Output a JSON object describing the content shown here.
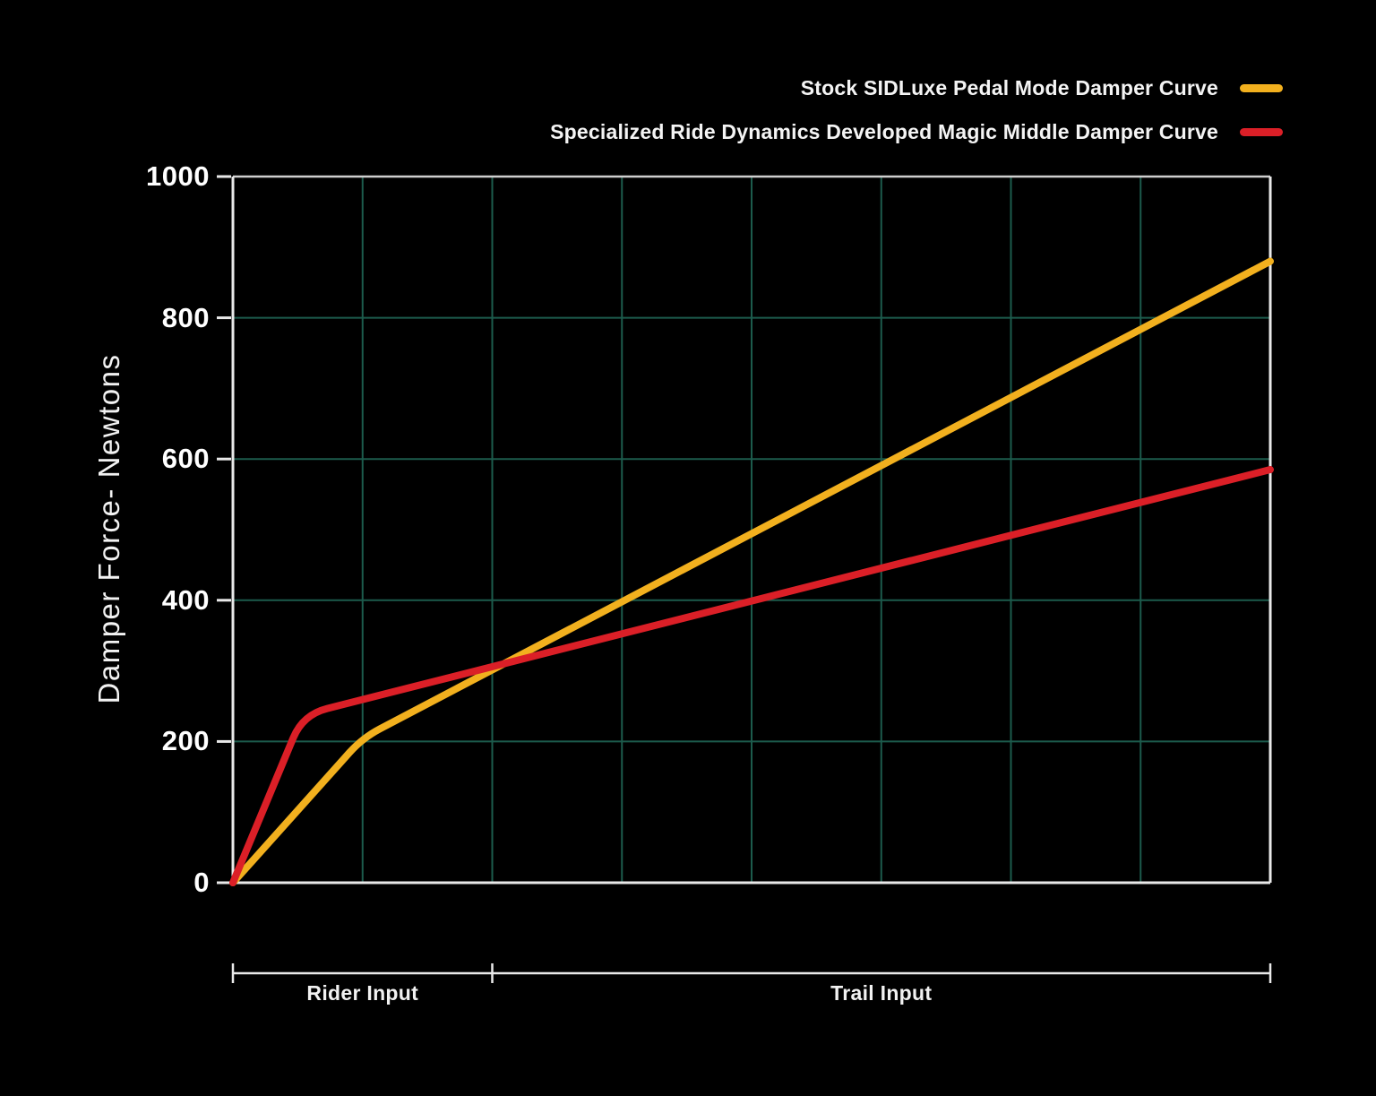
{
  "chart_data": {
    "type": "line",
    "title": "",
    "xlabel": "",
    "ylabel": "Damper Force- Newtons",
    "ylim": [
      0,
      1000
    ],
    "yticks": [
      0,
      200,
      400,
      600,
      800,
      1000
    ],
    "xlim": [
      0,
      8
    ],
    "grid": {
      "on": true,
      "vlines_x": [
        1,
        2,
        3,
        4,
        5,
        6,
        7
      ],
      "hlines_y": [
        200,
        400,
        600,
        800
      ],
      "color": "#1C5B4C"
    },
    "axis_color": "#E9E9E9",
    "top_border_color": "#CFCFCF",
    "legend_position": "top-right",
    "series": [
      {
        "name": "Stock SIDLuxe Pedal Mode Damper Curve",
        "color": "#F2B01E",
        "points": [
          [
            0,
            0
          ],
          [
            1.0,
            205
          ],
          [
            8,
            880
          ]
        ]
      },
      {
        "name": "Specialized Ride Dynamics Developed Magic Middle Damper Curve",
        "color": "#DB1F27",
        "points": [
          [
            0,
            0
          ],
          [
            0.54,
            238
          ],
          [
            8,
            585
          ]
        ]
      }
    ],
    "x_segments": [
      {
        "label": "Rider Input",
        "from": 0,
        "to": 2
      },
      {
        "label": "Trail Input",
        "from": 2,
        "to": 8
      }
    ]
  }
}
